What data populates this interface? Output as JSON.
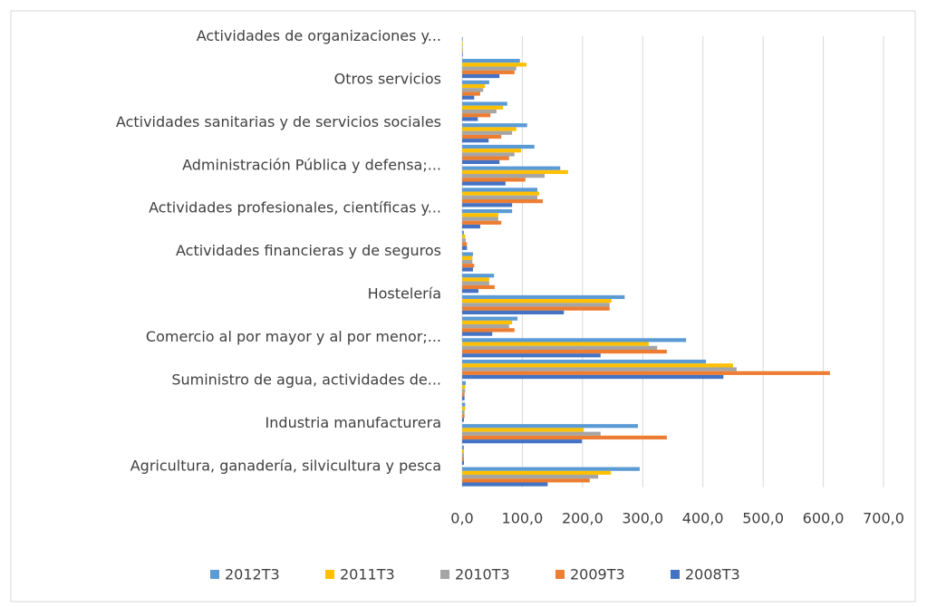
{
  "chart_data": {
    "type": "bar",
    "orientation": "horizontal",
    "categories": [
      "Agricultura, ganadería, silvicultura y pesca",
      null,
      "Industria manufacturera",
      null,
      "Suministro de agua, actividades de...",
      null,
      "Comercio al por mayor y al por menor;...",
      null,
      "Hostelería",
      null,
      "Actividades financieras y de seguros",
      null,
      "Actividades profesionales, científicas y...",
      null,
      "Administración Pública y defensa;...",
      null,
      "Actividades sanitarias y de servicios sociales",
      null,
      "Otros servicios",
      null,
      "Actividades de organizaciones y..."
    ],
    "series": [
      {
        "name": "2012T3",
        "color": "#5b9bd5",
        "values": [
          295,
          3,
          292,
          5,
          6,
          405,
          372,
          92,
          270,
          53,
          18,
          3,
          83,
          125,
          163,
          120,
          108,
          75,
          45,
          96,
          1
        ]
      },
      {
        "name": "2011T3",
        "color": "#ffc000",
        "values": [
          247,
          3,
          202,
          5,
          5,
          450,
          310,
          83,
          248,
          45,
          17,
          5,
          60,
          128,
          176,
          98,
          90,
          68,
          38,
          107,
          1
        ]
      },
      {
        "name": "2010T3",
        "color": "#a5a5a5",
        "values": [
          226,
          3,
          230,
          4,
          5,
          456,
          324,
          78,
          245,
          45,
          17,
          6,
          60,
          125,
          137,
          87,
          83,
          57,
          35,
          90,
          1
        ]
      },
      {
        "name": "2009T3",
        "color": "#ed7d31",
        "values": [
          212,
          3,
          340,
          4,
          4,
          611,
          340,
          87,
          245,
          54,
          20,
          8,
          65,
          134,
          105,
          78,
          65,
          47,
          30,
          87,
          1
        ]
      },
      {
        "name": "2008T3",
        "color": "#4472c4",
        "values": [
          142,
          3,
          199,
          3,
          4,
          434,
          230,
          50,
          169,
          27,
          18,
          8,
          30,
          83,
          72,
          62,
          44,
          26,
          20,
          62,
          1
        ]
      }
    ],
    "xlim": [
      0,
      700
    ],
    "xticks": [
      {
        "value": 0,
        "label": "0,0"
      },
      {
        "value": 100,
        "label": "100,0"
      },
      {
        "value": 200,
        "label": "200,0"
      },
      {
        "value": 300,
        "label": "300,0"
      },
      {
        "value": 400,
        "label": "400,0"
      },
      {
        "value": 500,
        "label": "500,0"
      },
      {
        "value": 600,
        "label": "600,0"
      },
      {
        "value": 700,
        "label": "700,0"
      }
    ],
    "grid": true,
    "legend": "bottom"
  }
}
